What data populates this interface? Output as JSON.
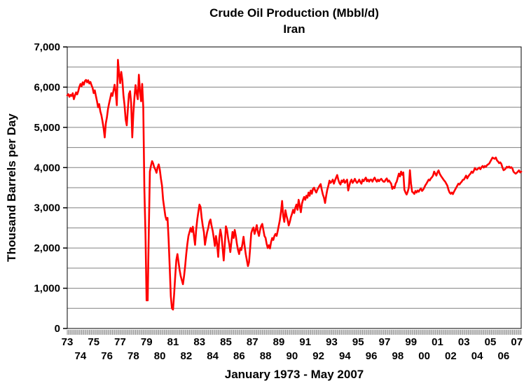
{
  "chart_data": {
    "type": "line",
    "title": "Crude Oil Production (Mbbl/d)",
    "subtitle": "Iran",
    "xlabel": "January 1973 - May 2007",
    "ylabel": "Thousand Barrels per Day",
    "line_color": "#FF0000",
    "gridline_color": "#808080",
    "grid_interval": 500,
    "ylim": [
      0,
      7000
    ],
    "x_range": "Jan 1973 - May 2007 (monthly)",
    "y_tick_labels": [
      "0",
      "1,000",
      "2,000",
      "3,000",
      "4,000",
      "5,000",
      "6,000",
      "7,000"
    ],
    "x_tick_labels_row1": [
      "73",
      "75",
      "77",
      "79",
      "81",
      "83",
      "85",
      "87",
      "89",
      "91",
      "93",
      "95",
      "97",
      "99",
      "01",
      "03",
      "05",
      "07"
    ],
    "x_tick_labels_row2": [
      "74",
      "76",
      "78",
      "80",
      "82",
      "84",
      "86",
      "88",
      "90",
      "92",
      "94",
      "96",
      "98",
      "00",
      "02",
      "04",
      "06"
    ],
    "start_year": 1973,
    "values_unit": "thousand barrels per day",
    "values": [
      5795,
      5825,
      5760,
      5810,
      5780,
      5850,
      5700,
      5790,
      5870,
      5820,
      5900,
      6010,
      6080,
      6020,
      6120,
      6060,
      6150,
      6180,
      6120,
      6170,
      6090,
      6130,
      6050,
      5980,
      5850,
      5920,
      5780,
      5650,
      5500,
      5580,
      5400,
      5300,
      5150,
      4980,
      4750,
      5100,
      5250,
      5460,
      5600,
      5720,
      5850,
      5780,
      5920,
      6060,
      5870,
      5550,
      6680,
      6350,
      6100,
      6380,
      6180,
      5800,
      5550,
      5200,
      5050,
      5450,
      5830,
      5900,
      5600,
      4750,
      5350,
      5750,
      6050,
      5850,
      5700,
      6310,
      5900,
      5650,
      6080,
      5500,
      3450,
      2350,
      700,
      700,
      2400,
      3900,
      4050,
      4160,
      4100,
      4000,
      3950,
      3870,
      4000,
      4080,
      3950,
      3730,
      3550,
      3200,
      3000,
      2800,
      2700,
      2750,
      2210,
      1520,
      800,
      500,
      470,
      850,
      1300,
      1700,
      1850,
      1650,
      1450,
      1300,
      1200,
      1100,
      1300,
      1550,
      1850,
      2100,
      2300,
      2400,
      2500,
      2400,
      2530,
      2300,
      2080,
      2450,
      2710,
      2900,
      3080,
      3020,
      2750,
      2550,
      2400,
      2080,
      2250,
      2400,
      2500,
      2650,
      2710,
      2550,
      2430,
      2250,
      2050,
      2300,
      2100,
      1780,
      2250,
      2460,
      2300,
      2000,
      1690,
      2100,
      2540,
      2450,
      2250,
      2100,
      1900,
      2150,
      2400,
      2250,
      2450,
      2300,
      2100,
      1950,
      1850,
      2000,
      1950,
      2100,
      2280,
      2050,
      1850,
      1700,
      1550,
      1650,
      2000,
      2370,
      2460,
      2510,
      2350,
      2450,
      2570,
      2400,
      2300,
      2450,
      2550,
      2600,
      2450,
      2300,
      2250,
      2100,
      2000,
      2070,
      1990,
      2150,
      2250,
      2200,
      2300,
      2350,
      2300,
      2420,
      2560,
      2700,
      2900,
      3170,
      2800,
      2650,
      2940,
      2800,
      2700,
      2560,
      2650,
      2770,
      2850,
      2950,
      2870,
      3000,
      3080,
      2950,
      3200,
      3050,
      2890,
      3100,
      3200,
      3270,
      3200,
      3300,
      3250,
      3380,
      3300,
      3430,
      3350,
      3470,
      3500,
      3430,
      3380,
      3450,
      3500,
      3550,
      3590,
      3450,
      3330,
      3250,
      3120,
      3300,
      3450,
      3550,
      3675,
      3620,
      3650,
      3700,
      3600,
      3680,
      3750,
      3815,
      3700,
      3620,
      3580,
      3680,
      3640,
      3700,
      3620,
      3660,
      3700,
      3430,
      3550,
      3650,
      3700,
      3620,
      3660,
      3720,
      3660,
      3620,
      3650,
      3700,
      3640,
      3600,
      3700,
      3660,
      3710,
      3750,
      3660,
      3700,
      3650,
      3700,
      3700,
      3650,
      3710,
      3750,
      3690,
      3650,
      3700,
      3660,
      3700,
      3720,
      3680,
      3650,
      3650,
      3700,
      3730,
      3650,
      3680,
      3640,
      3600,
      3470,
      3520,
      3490,
      3600,
      3650,
      3750,
      3850,
      3780,
      3900,
      3820,
      3880,
      3450,
      3380,
      3330,
      3400,
      3500,
      3935,
      3600,
      3400,
      3380,
      3345,
      3420,
      3380,
      3430,
      3400,
      3450,
      3480,
      3420,
      3450,
      3500,
      3560,
      3600,
      3650,
      3700,
      3680,
      3730,
      3760,
      3800,
      3900,
      3850,
      3800,
      3880,
      3930,
      3850,
      3800,
      3760,
      3720,
      3680,
      3650,
      3600,
      3550,
      3450,
      3380,
      3350,
      3380,
      3340,
      3400,
      3450,
      3500,
      3550,
      3600,
      3580,
      3620,
      3650,
      3695,
      3700,
      3750,
      3800,
      3730,
      3780,
      3820,
      3850,
      3900,
      3870,
      3920,
      3990,
      3950,
      3950,
      3980,
      4000,
      3960,
      4010,
      4040,
      4000,
      4040,
      4020,
      4060,
      4080,
      4100,
      4150,
      4200,
      4250,
      4230,
      4220,
      4250,
      4180,
      4150,
      4110,
      4130,
      4090,
      4000,
      3935,
      3950,
      3980,
      4020,
      4000,
      4025,
      3990,
      4010,
      3980,
      3900,
      3870,
      3850,
      3870,
      3900,
      3930,
      3880,
      3900
    ]
  }
}
